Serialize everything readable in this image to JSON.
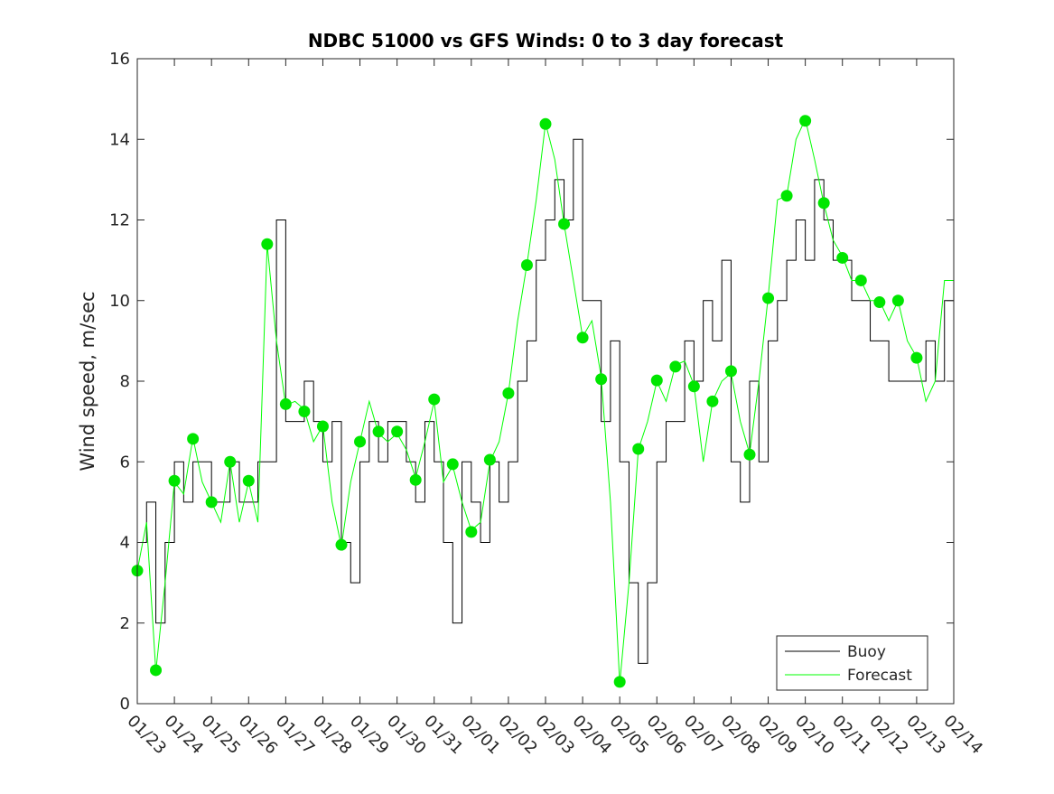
{
  "chart_data": {
    "type": "line",
    "title": "NDBC 51000 vs GFS Winds: 0 to 3 day forecast",
    "xlabel": "",
    "ylabel": "Wind speed, m/sec",
    "ylim": [
      0,
      16
    ],
    "xlim_days": [
      0,
      22
    ],
    "yticks": [
      0,
      2,
      4,
      6,
      8,
      10,
      12,
      14,
      16
    ],
    "xtick_labels": [
      "01/23",
      "01/24",
      "01/25",
      "01/26",
      "01/27",
      "01/28",
      "01/29",
      "01/30",
      "01/31",
      "02/01",
      "02/02",
      "02/03",
      "02/04",
      "02/05",
      "02/06",
      "02/07",
      "02/08",
      "02/09",
      "02/10",
      "02/11",
      "02/12",
      "02/13",
      "02/14"
    ],
    "grid": false,
    "legend": {
      "placement": "bottom-right",
      "entries": [
        {
          "label": "Buoy",
          "color": "#000000"
        },
        {
          "label": "Forecast",
          "color": "#00ff00"
        }
      ]
    },
    "x_step_days": 0.25,
    "series": [
      {
        "name": "Buoy",
        "color": "#000000",
        "values": [
          4,
          5,
          2,
          4,
          6,
          5,
          6,
          6,
          5,
          5,
          6,
          5,
          5,
          6,
          6,
          12,
          7,
          7,
          8,
          7,
          6,
          7,
          4,
          3,
          6,
          7,
          6,
          7,
          7,
          6,
          5,
          7,
          6,
          4,
          2,
          6,
          5,
          4,
          6,
          5,
          6,
          8,
          9,
          11,
          12,
          13,
          12,
          14,
          10,
          10,
          7,
          9,
          6,
          3,
          1,
          3,
          6,
          7,
          7,
          9,
          8,
          10,
          9,
          11,
          6,
          5,
          8,
          6,
          9,
          10,
          11,
          12,
          11,
          13,
          12,
          11,
          11,
          10,
          10,
          9,
          9,
          8,
          8,
          8,
          8,
          9,
          8,
          10,
          10
        ]
      },
      {
        "name": "Forecast",
        "color": "#00ff00",
        "values": [
          3.3,
          4.5,
          0.8,
          3,
          5.5,
          5.2,
          6.6,
          5.5,
          5.0,
          4.5,
          6.0,
          4.5,
          5.5,
          4.5,
          11.4,
          9,
          7.4,
          7.5,
          7.3,
          6.5,
          6.9,
          5,
          3.9,
          5.5,
          6.5,
          7.5,
          6.7,
          6.5,
          6.7,
          6.3,
          5.6,
          6.5,
          7.5,
          5.5,
          5.9,
          5,
          4.3,
          4.5,
          6.0,
          6.5,
          7.7,
          9.5,
          10.9,
          12.5,
          14.4,
          13.5,
          11.9,
          10.5,
          9.1,
          9.5,
          8.1,
          5,
          0.5,
          3,
          6.3,
          7,
          8.0,
          7.5,
          8.4,
          8.5,
          7.9,
          6,
          7.5,
          8,
          8.2,
          7,
          6.2,
          8,
          10.1,
          12.5,
          12.6,
          14,
          14.5,
          13.5,
          12.4,
          11.5,
          11.1,
          10.5,
          10.5,
          10,
          10,
          9.5,
          10,
          9,
          8.6,
          7.5,
          8,
          10.5,
          10.5
        ]
      }
    ],
    "analysis_points": {
      "color": "#00e600",
      "x_step_days": 0.5,
      "values": [
        3.3,
        0.83,
        5.53,
        6.57,
        5.0,
        6.0,
        5.53,
        11.4,
        7.43,
        7.25,
        6.88,
        3.94,
        6.5,
        6.75,
        6.75,
        5.55,
        7.55,
        5.94,
        4.26,
        6.05,
        7.7,
        10.88,
        14.38,
        11.9,
        9.08,
        8.05,
        0.54,
        6.32,
        8.02,
        8.36,
        7.87,
        7.5,
        8.25,
        6.18,
        10.06,
        12.6,
        14.46,
        12.42,
        11.06,
        10.5,
        9.96,
        10.0,
        8.58
      ]
    }
  }
}
